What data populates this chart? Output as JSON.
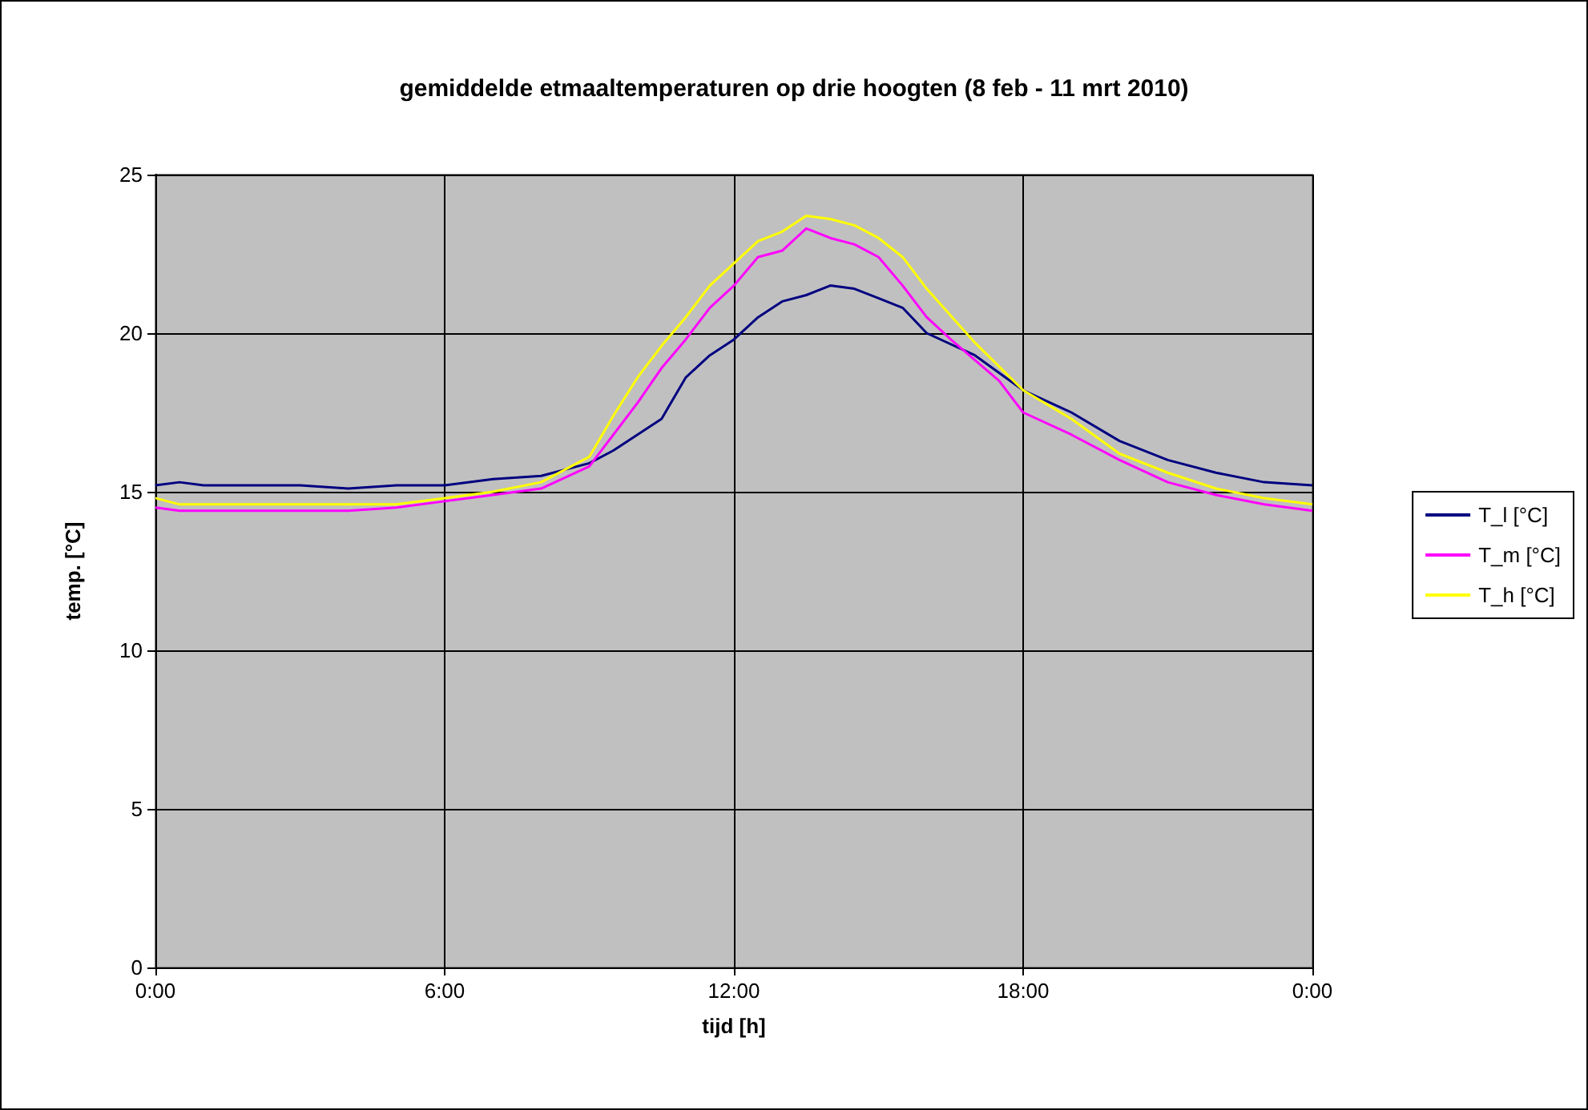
{
  "chart_data": {
    "type": "line",
    "title": "gemiddelde etmaaltemperaturen op drie hoogten (8 feb - 11 mrt 2010)",
    "xlabel": "tijd [h]",
    "ylabel": "temp. [°C]",
    "xlim": [
      0,
      24
    ],
    "xticks": [
      {
        "value": 0,
        "label": "0:00"
      },
      {
        "value": 6,
        "label": "6:00"
      },
      {
        "value": 12,
        "label": "12:00"
      },
      {
        "value": 18,
        "label": "18:00"
      },
      {
        "value": 24,
        "label": "0:00"
      }
    ],
    "ylim": [
      0,
      25
    ],
    "yticks": [
      0,
      5,
      10,
      15,
      20,
      25
    ],
    "grid": true,
    "legend": "right",
    "marker": "none",
    "line_style": "solid",
    "series": [
      {
        "name": "T_l [°C]",
        "color": "#000080",
        "x": [
          0,
          0.5,
          1,
          2,
          3,
          4,
          5,
          6,
          7,
          8,
          9,
          9.5,
          10,
          10.5,
          11,
          11.5,
          12,
          12.5,
          13,
          13.5,
          14,
          14.5,
          15,
          15.5,
          16,
          17,
          18,
          19,
          20,
          21,
          22,
          23,
          24
        ],
        "values": [
          15.2,
          15.3,
          15.2,
          15.2,
          15.2,
          15.1,
          15.2,
          15.2,
          15.4,
          15.5,
          15.9,
          16.3,
          16.8,
          17.3,
          18.6,
          19.3,
          19.8,
          20.5,
          21,
          21.2,
          21.5,
          21.4,
          21.1,
          20.8,
          20,
          19.3,
          18.2,
          17.5,
          16.6,
          16,
          15.6,
          15.3,
          15.2
        ]
      },
      {
        "name": "T_m [°C]",
        "color": "#ff00ff",
        "x": [
          0,
          0.5,
          1,
          2,
          3,
          4,
          5,
          6,
          7,
          8,
          9,
          9.5,
          10,
          10.5,
          11,
          11.5,
          12,
          12.5,
          13,
          13.5,
          14,
          14.5,
          15,
          15.5,
          16,
          16.5,
          17.5,
          18,
          19,
          20,
          21,
          22,
          23,
          24
        ],
        "values": [
          14.5,
          14.4,
          14.4,
          14.4,
          14.4,
          14.4,
          14.5,
          14.7,
          14.9,
          15.1,
          15.8,
          16.8,
          17.8,
          18.9,
          19.8,
          20.8,
          21.5,
          22.4,
          22.6,
          23.3,
          23,
          22.8,
          22.4,
          21.5,
          20.5,
          19.8,
          18.5,
          17.5,
          16.8,
          16,
          15.3,
          14.9,
          14.6,
          14.4
        ]
      },
      {
        "name": "T_h [°C]",
        "color": "#ffff00",
        "x": [
          0,
          0.5,
          1,
          2,
          3,
          4,
          5,
          6,
          7,
          8,
          9,
          9.5,
          10,
          10.5,
          11,
          11.5,
          12,
          12.5,
          13,
          13.5,
          14,
          14.5,
          15,
          15.5,
          16,
          17,
          18,
          19,
          20,
          21,
          22,
          23,
          24
        ],
        "values": [
          14.8,
          14.6,
          14.6,
          14.6,
          14.6,
          14.6,
          14.6,
          14.8,
          15,
          15.3,
          16.1,
          17.4,
          18.6,
          19.6,
          20.5,
          21.5,
          22.2,
          22.9,
          23.2,
          23.7,
          23.6,
          23.4,
          23,
          22.4,
          21.4,
          19.7,
          18.2,
          17.3,
          16.2,
          15.6,
          15.1,
          14.8,
          14.6
        ]
      }
    ]
  }
}
